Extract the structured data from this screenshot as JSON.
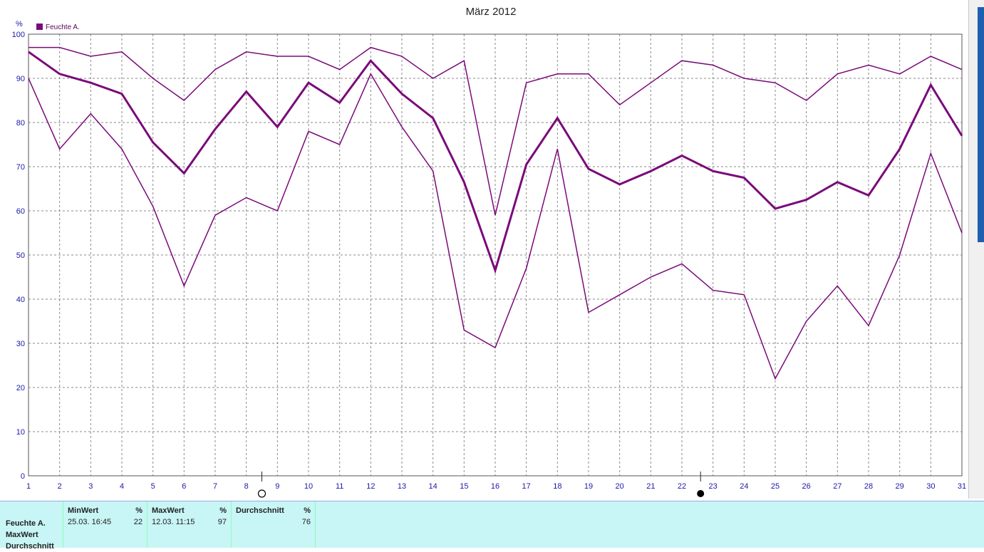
{
  "chart_data": {
    "type": "line",
    "title": "März 2012",
    "ylabel": "%",
    "legend": {
      "label": "Feuchte A.",
      "color": "#7a0a7a",
      "placement": "top-left"
    },
    "x": [
      1,
      2,
      3,
      4,
      5,
      6,
      7,
      8,
      9,
      10,
      11,
      12,
      13,
      14,
      15,
      16,
      17,
      18,
      19,
      20,
      21,
      22,
      23,
      24,
      25,
      26,
      27,
      28,
      29,
      30,
      31
    ],
    "xlim": [
      1,
      31
    ],
    "ylim": [
      0,
      100
    ],
    "yticks": [
      0,
      10,
      20,
      30,
      40,
      50,
      60,
      70,
      80,
      90,
      100
    ],
    "grid": true,
    "series": [
      {
        "values": [
          97,
          97,
          95,
          96,
          90,
          85,
          92,
          96,
          95,
          95,
          92,
          97,
          95,
          90,
          94,
          59,
          89,
          91,
          91,
          84,
          89,
          94,
          93,
          90,
          89,
          85,
          91,
          93,
          91,
          95,
          92
        ],
        "width": 1.5
      },
      {
        "values": [
          96,
          91,
          89,
          86.5,
          75.5,
          68.5,
          78.5,
          87,
          79,
          89,
          84.5,
          94,
          86.5,
          81,
          66.5,
          46.5,
          70.5,
          81,
          69.5,
          66,
          69,
          72.5,
          69,
          67.5,
          60.5,
          62.5,
          66.5,
          63.5,
          74,
          88.5,
          77
        ],
        "width": 3
      },
      {
        "values": [
          90,
          74,
          82,
          74,
          61,
          43,
          59,
          63,
          60,
          78,
          75,
          91,
          79,
          69,
          33,
          29,
          47,
          74,
          37,
          41,
          45,
          48,
          42,
          41,
          22,
          35,
          43,
          34,
          50,
          73,
          55
        ],
        "width": 1.5
      }
    ],
    "moon_phases": [
      {
        "day": 8.5,
        "phase": "full",
        "symbol": "○"
      },
      {
        "day": 22.6,
        "phase": "new",
        "symbol": "●"
      }
    ]
  },
  "stats_panel": {
    "row_labels": [
      "Feuchte A.",
      "MaxWert",
      "Durchschnitt"
    ],
    "columns": [
      {
        "header": "MinWert",
        "unit": "%",
        "date": "25.03.  16:45",
        "value": "22"
      },
      {
        "header": "MaxWert",
        "unit": "%",
        "date": "12.03.  11:15",
        "value": "97"
      },
      {
        "header": "Durchschnitt",
        "unit": "%",
        "date": "",
        "value": "76"
      }
    ]
  }
}
